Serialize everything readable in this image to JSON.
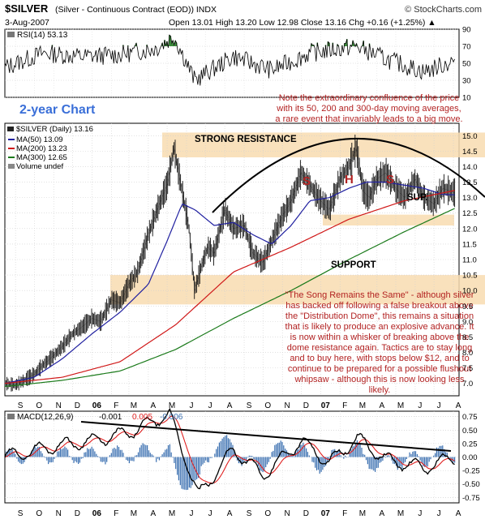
{
  "header": {
    "symbol": "$SILVER",
    "description": "(Silver - Continuous Contract (EOD)) INDX",
    "source": "© StockCharts.com",
    "date": "3-Aug-2007",
    "quote": "Open 13.01  High 13.20  Low 12.98  Close 13.16  Chg +0.16 (+1.25%) ▲"
  },
  "rsi_panel": {
    "label": "RSI(14) 53.13",
    "scale": [
      "90",
      "70",
      "50",
      "30",
      "10"
    ]
  },
  "price_panel": {
    "legend": {
      "symbol": "$SILVER (Daily) 13.16",
      "ma50": "MA(50) 13.09",
      "ma200": "MA(200) 13.23",
      "ma300": "MA(300) 12.65",
      "volume": "Volume undef"
    },
    "scale": [
      "15.0",
      "14.5",
      "14.0",
      "13.5",
      "13.0",
      "12.5",
      "12.0",
      "11.5",
      "11.0",
      "10.5",
      "10.0",
      "9.5",
      "9.0",
      "8.5",
      "8.0",
      "7.5",
      "7.0"
    ],
    "title_note": "2-year Chart",
    "note_top": [
      "Note the extraordinary confluence of the price",
      "with its 50, 200 and 300-day moving averages,",
      "a rare event that invariably leads to a big move."
    ],
    "resistance_label": "STRONG RESISTANCE",
    "support_label": "SUPPORT",
    "sup_label": "SUP.",
    "hs_labels": [
      "S",
      "H",
      "S"
    ],
    "note_main": [
      "\"The Song Remains the Same\" - although silver",
      "has backed off following a false breakout above",
      "the \"Distribution Dome\", this remains a situation",
      "that is likely to produce an explosive advance. It",
      "is now within a whisker of breaking above the",
      "dome resistance again. Tactics are to stay long",
      "and to buy here, with stops below $12, and to",
      "continue to be prepared for a possible flushout",
      "whipsaw - although this is now looking less",
      "likely."
    ]
  },
  "macd_panel": {
    "label": "MACD(12,26,9)",
    "v1": "-0.001",
    "v2": "0.005",
    "v3": "-0.006",
    "scale": [
      "0.75",
      "0.50",
      "0.25",
      "0.00",
      "-0.25",
      "-0.50",
      "-0.75"
    ]
  },
  "x_axis": {
    "labels": [
      "S",
      "O",
      "N",
      "D",
      "06",
      "F",
      "M",
      "A",
      "M",
      "J",
      "J",
      "A",
      "S",
      "O",
      "N",
      "D",
      "07",
      "F",
      "M",
      "A",
      "M",
      "J",
      "J",
      "A"
    ]
  },
  "colors": {
    "price": "#111111",
    "ma50": "#2020a0",
    "ma200": "#d01818",
    "ma300": "#1a7a1a",
    "band": "#f8dcb0",
    "annotation": "#b22222",
    "title_note": "#3a6fd8",
    "macd_line": "#000000",
    "macd_signal": "#e02020",
    "macd_hist": "#3a6fb0",
    "rsi_fill": "#3a8a3a"
  },
  "chart_data": [
    {
      "type": "line",
      "title": "$SILVER (Silver - Continuous Contract (EOD)) INDX",
      "series": [
        {
          "name": "$SILVER (Daily) 13.16",
          "x": [
            "2005-08-15",
            "2005-09-01",
            "2005-09-15",
            "2005-10-01",
            "2005-10-15",
            "2005-11-01",
            "2005-11-15",
            "2005-12-01",
            "2005-12-15",
            "2006-01-01",
            "2006-01-15",
            "2006-02-01",
            "2006-02-15",
            "2006-03-01",
            "2006-03-15",
            "2006-04-01",
            "2006-04-15",
            "2006-05-01",
            "2006-05-12",
            "2006-05-25",
            "2006-06-05",
            "2006-06-14",
            "2006-06-25",
            "2006-07-05",
            "2006-07-15",
            "2006-08-01",
            "2006-08-15",
            "2006-09-01",
            "2006-09-15",
            "2006-10-01",
            "2006-10-15",
            "2006-11-01",
            "2006-11-15",
            "2006-12-01",
            "2006-12-15",
            "2007-01-01",
            "2007-01-15",
            "2007-02-01",
            "2007-02-15",
            "2007-02-27",
            "2007-03-10",
            "2007-03-20",
            "2007-04-01",
            "2007-04-15",
            "2007-05-01",
            "2007-05-15",
            "2007-06-01",
            "2007-06-15",
            "2007-07-01",
            "2007-07-15",
            "2007-08-03"
          ],
          "y": [
            7.0,
            6.95,
            7.1,
            7.3,
            7.6,
            7.9,
            8.2,
            8.6,
            8.8,
            9.1,
            9.0,
            9.7,
            9.6,
            10.2,
            10.6,
            11.8,
            12.6,
            13.4,
            14.6,
            13.2,
            12.0,
            10.0,
            10.8,
            11.4,
            11.2,
            12.6,
            12.0,
            12.1,
            11.2,
            10.9,
            11.6,
            12.4,
            12.9,
            13.8,
            13.4,
            12.9,
            12.6,
            13.6,
            14.0,
            14.6,
            13.2,
            13.0,
            13.6,
            13.8,
            13.3,
            13.0,
            13.6,
            13.0,
            12.8,
            13.3,
            13.16
          ]
        },
        {
          "name": "MA(50) 13.09",
          "x": [
            "2005-08-15",
            "2005-10-01",
            "2005-11-15",
            "2006-01-01",
            "2006-02-15",
            "2006-04-01",
            "2006-05-01",
            "2006-05-25",
            "2006-06-15",
            "2006-07-15",
            "2006-08-15",
            "2006-09-15",
            "2006-10-15",
            "2006-11-15",
            "2006-12-15",
            "2007-01-15",
            "2007-02-15",
            "2007-03-15",
            "2007-04-15",
            "2007-05-15",
            "2007-06-15",
            "2007-07-15",
            "2007-08-03"
          ],
          "y": [
            7.0,
            7.2,
            7.8,
            8.6,
            9.3,
            10.2,
            11.6,
            12.8,
            12.6,
            12.1,
            12.2,
            11.8,
            11.5,
            12.1,
            12.9,
            13.0,
            13.3,
            13.5,
            13.5,
            13.4,
            13.3,
            13.1,
            13.09
          ]
        },
        {
          "name": "MA(200) 13.23",
          "x": [
            "2005-08-15",
            "2005-11-15",
            "2006-02-15",
            "2006-05-15",
            "2006-08-15",
            "2006-11-15",
            "2007-02-15",
            "2007-05-15",
            "2007-08-03"
          ],
          "y": [
            7.0,
            7.2,
            7.7,
            8.9,
            10.6,
            11.4,
            12.3,
            12.9,
            13.23
          ]
        },
        {
          "name": "MA(300) 12.65",
          "x": [
            "2005-08-15",
            "2005-11-15",
            "2006-02-15",
            "2006-05-15",
            "2006-08-15",
            "2006-11-15",
            "2007-02-15",
            "2007-05-15",
            "2007-08-03"
          ],
          "y": [
            6.9,
            7.1,
            7.4,
            8.1,
            9.1,
            10.0,
            11.0,
            11.9,
            12.65
          ]
        }
      ],
      "ylim": [
        6.6,
        15.4
      ],
      "annotations": [
        "STRONG RESISTANCE",
        "SUPPORT",
        "SUP.",
        "S",
        "H",
        "S"
      ],
      "bands": [
        {
          "label": "STRONG RESISTANCE",
          "from": 14.3,
          "to": 15.1
        },
        {
          "label": "SUPPORT",
          "from": 9.55,
          "to": 10.5
        },
        {
          "label": "SUP.",
          "from": 12.1,
          "to": 12.45
        }
      ],
      "grid": true
    },
    {
      "type": "line",
      "series": [
        {
          "name": "RSI(14) 53.13",
          "x": [
            "2005-08-15",
            "2005-10-15",
            "2005-12-15",
            "2006-02-15",
            "2006-04-15",
            "2006-05-12",
            "2006-06-14",
            "2006-08-15",
            "2006-10-15",
            "2006-12-15",
            "2007-02-27",
            "2007-04-15",
            "2007-06-15",
            "2007-08-03"
          ],
          "y": [
            45,
            62,
            58,
            60,
            68,
            82,
            30,
            58,
            42,
            62,
            70,
            55,
            40,
            53.13
          ]
        }
      ],
      "ylim": [
        10,
        90
      ]
    },
    {
      "type": "line",
      "series": [
        {
          "name": "MACD(12,26,9)",
          "x": [
            "2005-08-15",
            "2005-11-01",
            "2006-01-01",
            "2006-03-01",
            "2006-05-05",
            "2006-06-20",
            "2006-08-15",
            "2006-10-01",
            "2006-12-01",
            "2007-01-15",
            "2007-03-01",
            "2007-04-15",
            "2007-06-15",
            "2007-08-03"
          ],
          "y": [
            0.0,
            0.2,
            0.3,
            0.45,
            0.8,
            -0.72,
            0.15,
            -0.35,
            0.3,
            -0.1,
            0.35,
            -0.05,
            -0.2,
            -0.001
          ]
        }
      ],
      "ylim": [
        -0.85,
        0.85
      ]
    }
  ]
}
